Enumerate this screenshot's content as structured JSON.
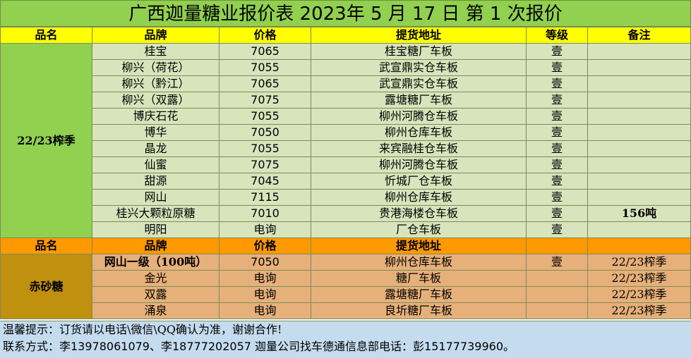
{
  "title": "广西迦量糖业报价表 2023年 5 月 17 日 第 1 次报价",
  "header": {
    "category": "品名",
    "brand": "品牌",
    "price": "价格",
    "pickup": "提货地址",
    "grade": "等级",
    "remark": "备注"
  },
  "white_sugar": {
    "category": "22/23榨季",
    "rows": [
      {
        "brand": "桂宝",
        "price": "7065",
        "pickup": "桂宝糖厂车板",
        "grade": "壹",
        "remark": ""
      },
      {
        "brand": "柳兴（荷花）",
        "price": "7055",
        "pickup": "武宣鼎实仓车板",
        "grade": "壹",
        "remark": ""
      },
      {
        "brand": "柳兴（黔江）",
        "price": "7065",
        "pickup": "武宣鼎实仓车板",
        "grade": "壹",
        "remark": ""
      },
      {
        "brand": "柳兴（双露）",
        "price": "7075",
        "pickup": "露塘糖厂车板",
        "grade": "壹",
        "remark": ""
      },
      {
        "brand": "博庆石花",
        "price": "7055",
        "pickup": "柳州河腾仓车板",
        "grade": "壹",
        "remark": ""
      },
      {
        "brand": "博华",
        "price": "7050",
        "pickup": "柳州仓库车板",
        "grade": "壹",
        "remark": ""
      },
      {
        "brand": "晶龙",
        "price": "7055",
        "pickup": "来宾融桂仓车板",
        "grade": "壹",
        "remark": ""
      },
      {
        "brand": "仙蜜",
        "price": "7075",
        "pickup": "柳州河腾仓车板",
        "grade": "壹",
        "remark": ""
      },
      {
        "brand": "甜源",
        "price": "7045",
        "pickup": "忻城厂仓车板",
        "grade": "壹",
        "remark": ""
      },
      {
        "brand": "网山",
        "price": "7115",
        "pickup": "柳州仓库车板",
        "grade": "壹",
        "remark": ""
      },
      {
        "brand": "桂兴大颗粒原糖",
        "price": "7010",
        "pickup": "贵港海楼仓车板",
        "grade": "壹",
        "remark": "156吨"
      },
      {
        "brand": "明阳",
        "price": "电询",
        "pickup": "厂仓车板",
        "grade": "壹",
        "remark": ""
      }
    ]
  },
  "header2": {
    "category": "品名",
    "brand": "品牌",
    "price": "价格",
    "pickup": "提货地址"
  },
  "red_sugar": {
    "category": "赤砂糖",
    "rows": [
      {
        "brand": "网山一级（100吨）",
        "price": "7050",
        "pickup": "柳州仓库车板",
        "grade": "壹",
        "remark": "22/23榨季"
      },
      {
        "brand": "金光",
        "price": "电询",
        "pickup": "糖厂车板",
        "grade": "",
        "remark": "22/23榨季"
      },
      {
        "brand": "双露",
        "price": "电询",
        "pickup": "露塘糖厂车板",
        "grade": "",
        "remark": "22/23榨季"
      },
      {
        "brand": "涌泉",
        "price": "电询",
        "pickup": "良圻糖厂车板",
        "grade": "",
        "remark": "22/23榨季"
      }
    ]
  },
  "footer": {
    "tip": "温馨提示：订货请以电话\\微信\\QQ确认为准，谢谢合作!",
    "contact": "联系方式：李13978061079、李18777202057    迦量公司找车德通信息部电话：彭15177739960。"
  }
}
